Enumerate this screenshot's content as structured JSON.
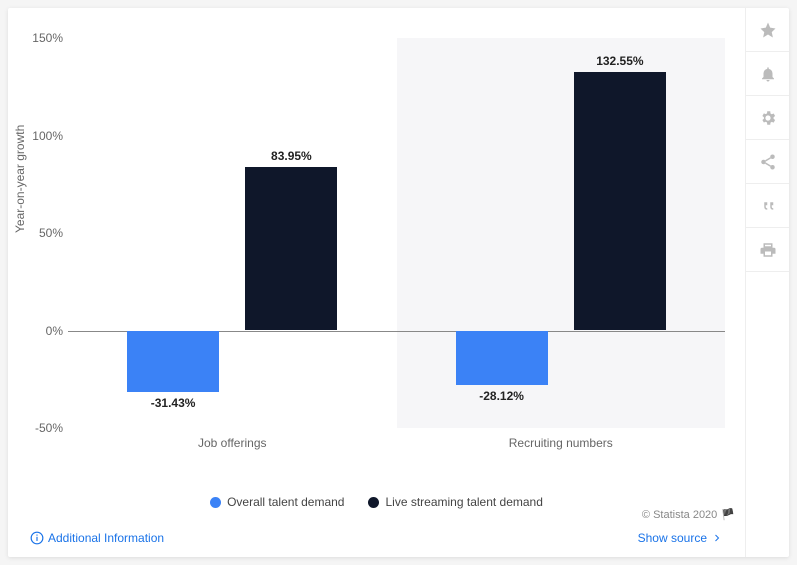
{
  "chart": {
    "type": "bar",
    "y_label": "Year-on-year growth",
    "ylim": [
      -50,
      150
    ],
    "ytick_step": 50,
    "yticks": [
      -50,
      0,
      50,
      100,
      150
    ],
    "ytick_labels": [
      "-50%",
      "0%",
      "50%",
      "100%",
      "150%"
    ],
    "zero_line_color": "#888888",
    "background_color": "#ffffff",
    "alt_band_color": "#f6f6f8",
    "grid_color": "#e0e0e0",
    "label_fontsize": 12,
    "value_fontsize": 12,
    "bar_width_ratio": 0.35,
    "categories": [
      "Job offerings",
      "Recruiting numbers"
    ],
    "series": [
      {
        "name": "Overall talent demand",
        "color": "#3b82f6",
        "values": [
          -31.43,
          -28.12
        ],
        "value_labels": [
          "-31.43%",
          "-28.12%"
        ]
      },
      {
        "name": "Live streaming talent demand",
        "color": "#0f172a",
        "values": [
          83.95,
          132.55
        ],
        "value_labels": [
          "83.95%",
          "132.55%"
        ]
      }
    ]
  },
  "toolbar": {
    "items": [
      {
        "name": "star-icon"
      },
      {
        "name": "bell-icon"
      },
      {
        "name": "gear-icon"
      },
      {
        "name": "share-icon"
      },
      {
        "name": "quote-icon"
      },
      {
        "name": "print-icon"
      }
    ]
  },
  "footer": {
    "additional_info": "Additional Information",
    "show_source": "Show source",
    "copyright": "© Statista 2020"
  }
}
